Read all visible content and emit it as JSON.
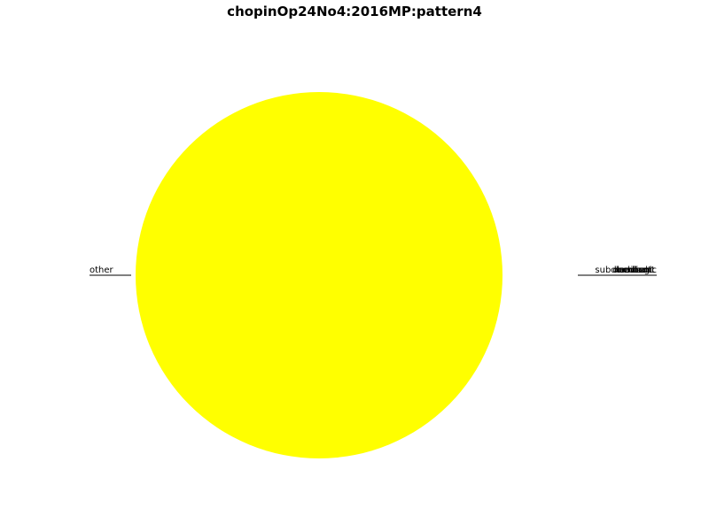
{
  "chart_data": {
    "type": "pie",
    "title": "chopinOp24No4:2016MP:pattern4",
    "slices": [
      {
        "label": "other",
        "value": 100.0,
        "color": "#ffff00",
        "side": "left"
      },
      {
        "label": "tonic",
        "value": 0.0,
        "color": "#ff0000",
        "side": "right"
      },
      {
        "label": "dominant",
        "value": 0.0,
        "color": "#00ff00",
        "side": "right"
      },
      {
        "label": "subdominant",
        "value": 0.0,
        "color": "#0000ff",
        "side": "right"
      },
      {
        "label": "mediant",
        "value": 0.0,
        "color": "#ff00ff",
        "side": "right"
      },
      {
        "label": "leading",
        "value": 0.0,
        "color": "#00ffff",
        "side": "right"
      },
      {
        "label": "chord",
        "value": 0.0,
        "color": "#888888",
        "side": "right"
      }
    ]
  }
}
